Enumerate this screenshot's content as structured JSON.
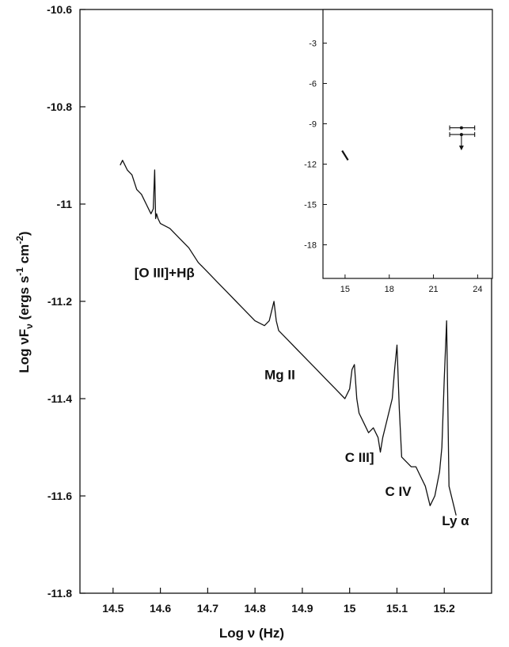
{
  "chart_data": [
    {
      "type": "line",
      "xlabel_parts": [
        "Log ",
        "ν",
        " (Hz)"
      ],
      "ylabel_parts": [
        "Log ",
        "ν",
        "F",
        "ν",
        " (ergs s",
        "-1",
        " cm",
        "-2",
        ")"
      ],
      "xlim": [
        14.43,
        15.3
      ],
      "ylim": [
        -11.8,
        -10.6
      ],
      "x_ticks": [
        14.5,
        14.6,
        14.7,
        14.8,
        14.9,
        15.0,
        15.1,
        15.2
      ],
      "x_tick_labels": [
        "14.5",
        "14.6",
        "14.7",
        "14.8",
        "14.9",
        "15",
        "15.1",
        "15.2"
      ],
      "y_ticks": [
        -11.8,
        -11.6,
        -11.4,
        -11.2,
        -11.0,
        -10.8,
        -10.6
      ],
      "y_tick_labels": [
        "-11.8",
        "-11.6",
        "-11.4",
        "-11.2",
        "-11",
        "-10.8",
        "-10.6"
      ],
      "series": [
        {
          "x": [
            14.515,
            14.52,
            14.53,
            14.54,
            14.55,
            14.56,
            14.57,
            14.58,
            14.585,
            14.588,
            14.59,
            14.592,
            14.595,
            14.6,
            14.62,
            14.64,
            14.66,
            14.68,
            14.7,
            14.72,
            14.74,
            14.76,
            14.78,
            14.8,
            14.82,
            14.83,
            14.835,
            14.84,
            14.845,
            14.85,
            14.87,
            14.89,
            14.91,
            14.93,
            14.95,
            14.97,
            14.99,
            15.0,
            15.005,
            15.01,
            15.015,
            15.02,
            15.03,
            15.04,
            15.05,
            15.06,
            15.065,
            15.07,
            15.08,
            15.09,
            15.095,
            15.1,
            15.105,
            15.11,
            15.12,
            15.13,
            15.14,
            15.15,
            15.16,
            15.17,
            15.18,
            15.19,
            15.195,
            15.2,
            15.205,
            15.21,
            15.22,
            15.225
          ],
          "y": [
            -10.92,
            -10.91,
            -10.93,
            -10.94,
            -10.97,
            -10.98,
            -11.0,
            -11.02,
            -11.01,
            -10.93,
            -11.03,
            -11.02,
            -11.03,
            -11.04,
            -11.05,
            -11.07,
            -11.09,
            -11.12,
            -11.14,
            -11.16,
            -11.18,
            -11.2,
            -11.22,
            -11.24,
            -11.25,
            -11.24,
            -11.22,
            -11.2,
            -11.24,
            -11.26,
            -11.28,
            -11.3,
            -11.32,
            -11.34,
            -11.36,
            -11.38,
            -11.4,
            -11.38,
            -11.34,
            -11.33,
            -11.4,
            -11.43,
            -11.45,
            -11.47,
            -11.46,
            -11.48,
            -11.51,
            -11.48,
            -11.44,
            -11.4,
            -11.34,
            -11.29,
            -11.42,
            -11.52,
            -11.53,
            -11.54,
            -11.54,
            -11.56,
            -11.58,
            -11.62,
            -11.6,
            -11.55,
            -11.5,
            -11.36,
            -11.24,
            -11.58,
            -11.62,
            -11.64
          ]
        }
      ],
      "annotations": [
        {
          "text": "[O III]+Hβ",
          "x": 14.545,
          "y": -11.15
        },
        {
          "text": "Mg II",
          "x": 14.82,
          "y": -11.36
        },
        {
          "text": "C III]",
          "x": 14.99,
          "y": -11.53
        },
        {
          "text": "C IV",
          "x": 15.075,
          "y": -11.6
        },
        {
          "text": "Ly α",
          "x": 15.195,
          "y": -11.66
        }
      ],
      "grid": false
    },
    {
      "type": "scatter",
      "xlim": [
        13.5,
        25
      ],
      "ylim": [
        -20.5,
        -0.5
      ],
      "x_ticks": [
        15,
        18,
        21,
        24
      ],
      "x_tick_labels": [
        "15",
        "18",
        "21",
        "24"
      ],
      "y_ticks": [
        -3,
        -6,
        -9,
        -12,
        -15,
        -18
      ],
      "y_tick_labels": [
        "-3",
        "-6",
        "-9",
        "-12",
        "-15",
        "-18"
      ],
      "segment": {
        "x": [
          14.8,
          15.2
        ],
        "y": [
          -11.0,
          -11.7
        ]
      },
      "points": [
        {
          "x": 22.9,
          "y": -9.3,
          "xerr": [
            22.1,
            23.8
          ],
          "upper_limit": false
        },
        {
          "x": 22.9,
          "y": -9.8,
          "xerr": [
            22.1,
            23.8
          ],
          "upper_limit": true
        }
      ],
      "grid": false
    }
  ]
}
